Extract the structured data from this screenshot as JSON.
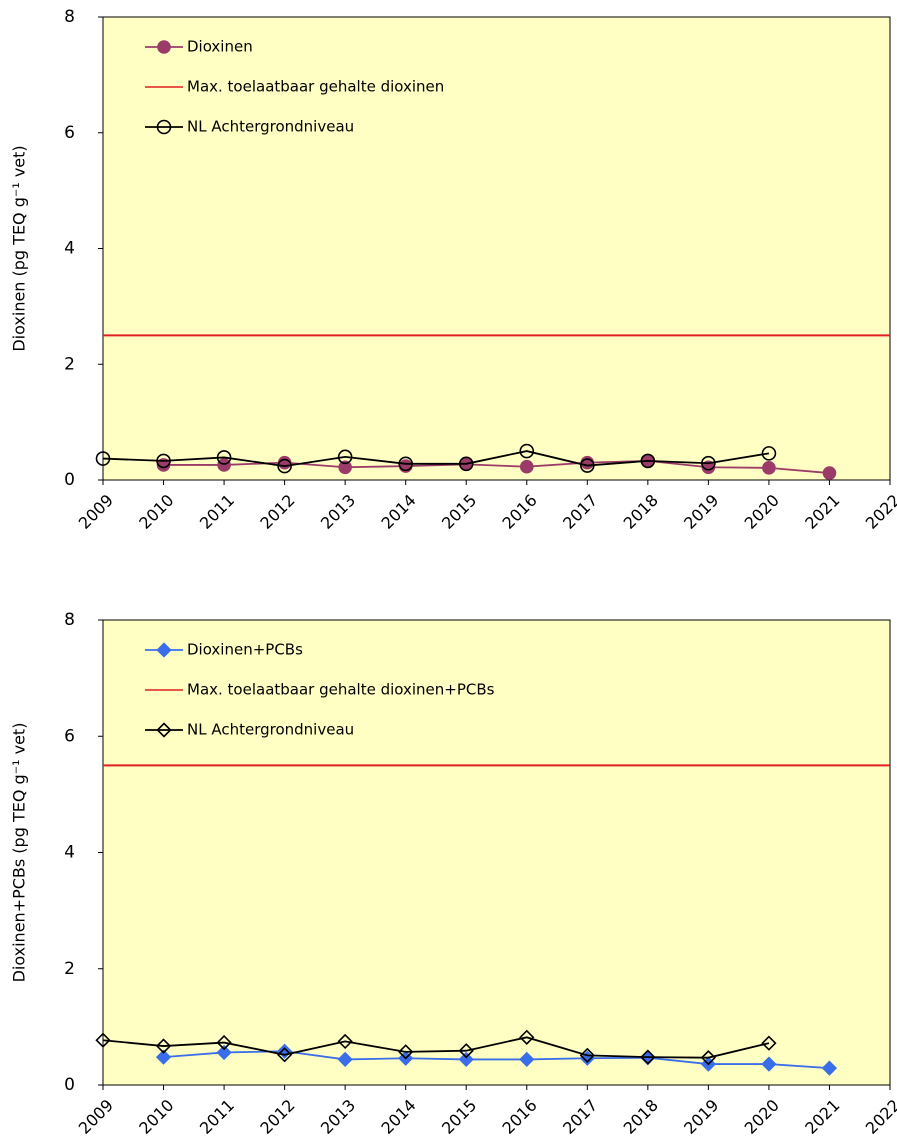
{
  "chart_data": [
    {
      "type": "line",
      "ylabel": "Dioxinen (pg TEQ g⁻¹ vet)",
      "x": [
        2009,
        2010,
        2011,
        2012,
        2013,
        2014,
        2015,
        2016,
        2017,
        2018,
        2019,
        2020,
        2021
      ],
      "xlim": [
        2009,
        2022
      ],
      "xticks": [
        2009,
        2010,
        2011,
        2012,
        2013,
        2014,
        2015,
        2016,
        2017,
        2018,
        2019,
        2020,
        2021,
        2022
      ],
      "ylim": [
        0,
        8
      ],
      "yticks": [
        0,
        2,
        4,
        6,
        8
      ],
      "series": [
        {
          "name": "Dioxinen",
          "color": "#9b3b68",
          "marker": "circle",
          "filled": true,
          "values": [
            null,
            0.26,
            0.26,
            0.3,
            0.22,
            0.24,
            0.27,
            0.23,
            0.3,
            0.33,
            0.22,
            0.21,
            0.12
          ]
        },
        {
          "name": "NL Achtergrondniveau",
          "color": "#000000",
          "marker": "circle",
          "filled": false,
          "values": [
            0.37,
            0.33,
            0.39,
            0.24,
            0.4,
            0.28,
            0.28,
            0.5,
            0.25,
            0.33,
            0.29,
            0.46,
            null
          ]
        }
      ],
      "reference_line": {
        "name": "Max. toelaatbaar gehalte dioxinen",
        "value": 2.5,
        "color": "#e02020"
      }
    },
    {
      "type": "line",
      "ylabel": "Dioxinen+PCBs (pg TEQ g⁻¹ vet)",
      "x": [
        2009,
        2010,
        2011,
        2012,
        2013,
        2014,
        2015,
        2016,
        2017,
        2018,
        2019,
        2020,
        2021
      ],
      "xlim": [
        2009,
        2022
      ],
      "xticks": [
        2009,
        2010,
        2011,
        2012,
        2013,
        2014,
        2015,
        2016,
        2017,
        2018,
        2019,
        2020,
        2021,
        2022
      ],
      "ylim": [
        0,
        8
      ],
      "yticks": [
        0,
        2,
        4,
        6,
        8
      ],
      "series": [
        {
          "name": "Dioxinen+PCBs",
          "color": "#3a6ee8",
          "marker": "diamond",
          "filled": true,
          "values": [
            null,
            0.48,
            0.56,
            0.58,
            0.44,
            0.46,
            0.44,
            0.44,
            0.46,
            0.47,
            0.36,
            0.36,
            0.29
          ]
        },
        {
          "name": "NL Achtergrondniveau",
          "color": "#000000",
          "marker": "diamond",
          "filled": false,
          "values": [
            0.77,
            0.67,
            0.73,
            0.52,
            0.75,
            0.57,
            0.59,
            0.82,
            0.51,
            0.48,
            0.47,
            0.72,
            null
          ]
        }
      ],
      "reference_line": {
        "name": "Max. toelaatbaar gehalte dioxinen+PCBs",
        "value": 5.5,
        "color": "#e02020"
      }
    }
  ]
}
